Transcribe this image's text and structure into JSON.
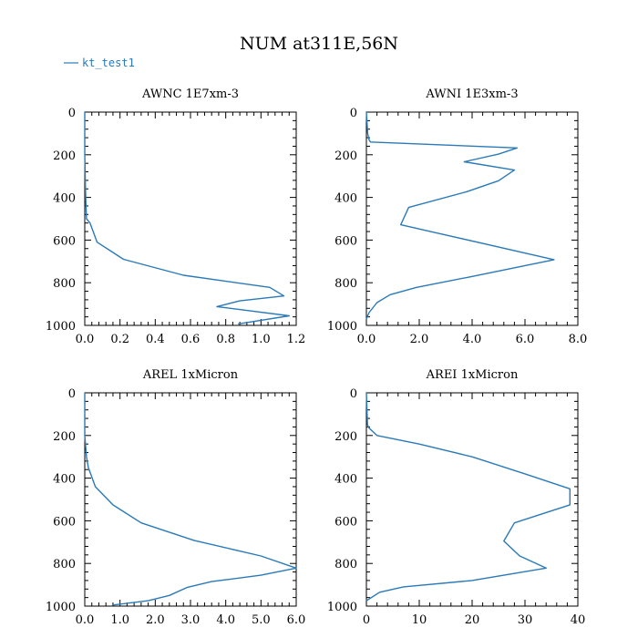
{
  "figure": {
    "title": "NUM at311E,56N",
    "legend": {
      "label": "kt_test1",
      "color": "#2a7ab8"
    }
  },
  "chart_data": [
    {
      "type": "line",
      "title": "AWNC  1E7xm-3",
      "xlim": [
        0,
        1.2
      ],
      "ylim": [
        1000,
        0
      ],
      "xticks": [
        "0.0",
        "0.2",
        "0.4",
        "0.6",
        "0.8",
        "1.0",
        "1.2"
      ],
      "yticks": [
        "0",
        "200",
        "400",
        "600",
        "800",
        "1000"
      ],
      "series": [
        {
          "name": "kt_test1",
          "x": [
            0,
            0,
            0.005,
            0.01,
            0.03,
            0.07,
            0.22,
            0.56,
            1.05,
            1.13,
            0.88,
            0.75,
            1.16,
            0.87
          ],
          "y": [
            0,
            200,
            400,
            500,
            520,
            610,
            690,
            765,
            822,
            862,
            885,
            912,
            955,
            993
          ]
        }
      ]
    },
    {
      "type": "line",
      "title": "AWNI  1E3xm-3",
      "xlim": [
        0,
        8
      ],
      "ylim": [
        1000,
        0
      ],
      "xticks": [
        "0.0",
        "2.0",
        "4.0",
        "6.0",
        "8.0"
      ],
      "yticks": [
        "0",
        "200",
        "400",
        "600",
        "800",
        "1000"
      ],
      "series": [
        {
          "name": "kt_test1",
          "x": [
            0,
            0.05,
            0.1,
            0.15,
            5.7,
            5.0,
            3.7,
            5.6,
            5.0,
            3.8,
            1.6,
            1.3,
            7.1,
            3.9,
            1.9,
            0.9,
            0.4,
            0.1,
            0
          ],
          "y": [
            0,
            100,
            130,
            140,
            168,
            197,
            233,
            272,
            322,
            373,
            447,
            528,
            692,
            773,
            822,
            856,
            893,
            940,
            970
          ]
        }
      ]
    },
    {
      "type": "line",
      "title": "AREL  1xMicron",
      "xlim": [
        0,
        6
      ],
      "ylim": [
        1000,
        0
      ],
      "xticks": [
        "0.0",
        "1.0",
        "2.0",
        "3.0",
        "4.0",
        "5.0",
        "6.0"
      ],
      "yticks": [
        "0",
        "200",
        "400",
        "600",
        "800",
        "1000"
      ],
      "series": [
        {
          "name": "kt_test1",
          "x": [
            0,
            0,
            0.05,
            0.1,
            0.3,
            0.8,
            1.6,
            3.1,
            5.0,
            6.0,
            5.0,
            3.6,
            2.9,
            2.4,
            1.8,
            0.8
          ],
          "y": [
            0,
            200,
            300,
            350,
            440,
            525,
            610,
            692,
            765,
            822,
            855,
            885,
            913,
            950,
            975,
            995
          ]
        }
      ]
    },
    {
      "type": "line",
      "title": "AREI  1xMicron",
      "xlim": [
        0,
        40
      ],
      "ylim": [
        1000,
        0
      ],
      "xticks": [
        "0",
        "10",
        "20",
        "30",
        "40"
      ],
      "yticks": [
        "0",
        "200",
        "400",
        "600",
        "800",
        "1000"
      ],
      "series": [
        {
          "name": "kt_test1",
          "x": [
            0,
            0.2,
            0.5,
            2,
            10,
            20,
            30,
            38.5,
            38.5,
            28,
            26,
            29,
            34,
            20,
            7,
            2.5,
            0
          ],
          "y": [
            0,
            150,
            165,
            200,
            240,
            300,
            380,
            450,
            525,
            610,
            695,
            765,
            822,
            880,
            910,
            935,
            975
          ]
        }
      ]
    }
  ]
}
